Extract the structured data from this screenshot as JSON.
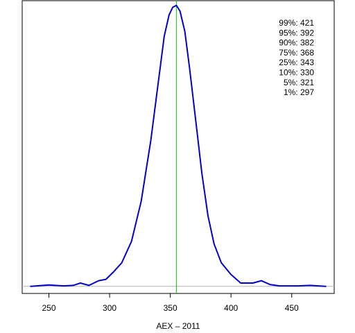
{
  "chart_data": {
    "type": "line",
    "title": "",
    "xlabel": "AEX – 2011",
    "ylabel": "",
    "xlim": [
      228,
      485
    ],
    "ylim": [
      -0.0015,
      0.0605
    ],
    "x_ticks": [
      250,
      300,
      350,
      400,
      450
    ],
    "x_tick_labels": [
      "250",
      "300",
      "350",
      "400",
      "450"
    ],
    "grid": false,
    "legend": "none",
    "colors": {
      "density": "#0000cc",
      "median_line": "#00cc00",
      "baseline": "#b3b3b3",
      "axes": "#000000"
    },
    "median_x": 355,
    "baseline_y": 0,
    "series": [
      {
        "values": [
          {
            "x": 235,
            "y": 0.0
          },
          {
            "x": 250,
            "y": 0.0003
          },
          {
            "x": 262,
            "y": 0.0001
          },
          {
            "x": 270,
            "y": 0.0002
          },
          {
            "x": 276,
            "y": 0.0007
          },
          {
            "x": 283,
            "y": 0.0002
          },
          {
            "x": 291,
            "y": 0.0012
          },
          {
            "x": 297,
            "y": 0.0015
          },
          {
            "x": 303,
            "y": 0.003
          },
          {
            "x": 310,
            "y": 0.005
          },
          {
            "x": 318,
            "y": 0.0095
          },
          {
            "x": 326,
            "y": 0.018
          },
          {
            "x": 334,
            "y": 0.031
          },
          {
            "x": 340,
            "y": 0.043
          },
          {
            "x": 345,
            "y": 0.053
          },
          {
            "x": 349,
            "y": 0.0575
          },
          {
            "x": 352,
            "y": 0.0591
          },
          {
            "x": 355,
            "y": 0.0595
          },
          {
            "x": 358,
            "y": 0.0583
          },
          {
            "x": 362,
            "y": 0.054
          },
          {
            "x": 366,
            "y": 0.046
          },
          {
            "x": 371,
            "y": 0.035
          },
          {
            "x": 376,
            "y": 0.024
          },
          {
            "x": 381,
            "y": 0.015
          },
          {
            "x": 386,
            "y": 0.009
          },
          {
            "x": 392,
            "y": 0.005
          },
          {
            "x": 400,
            "y": 0.0025
          },
          {
            "x": 408,
            "y": 0.0007
          },
          {
            "x": 418,
            "y": 0.0007
          },
          {
            "x": 425,
            "y": 0.0012
          },
          {
            "x": 432,
            "y": 0.0004
          },
          {
            "x": 440,
            "y": 0.0001
          },
          {
            "x": 455,
            "y": 0.0001
          },
          {
            "x": 465,
            "y": 0.0002
          },
          {
            "x": 478,
            "y": 0.0
          }
        ]
      }
    ],
    "annotations": [
      "99%: 421",
      "95%: 392",
      "90%: 382",
      "75%: 368",
      "25%: 343",
      "10%: 330",
      "5%: 321",
      "1%: 297"
    ]
  }
}
